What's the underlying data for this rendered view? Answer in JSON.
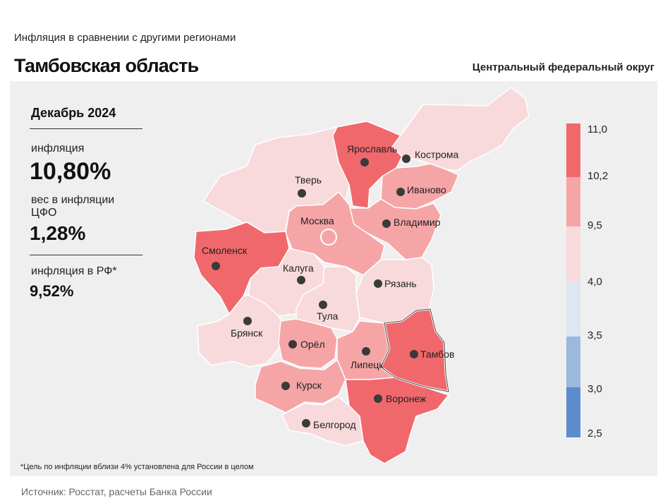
{
  "header": {
    "subtitle": "Инфляция  в сравнении  с другими  регионами",
    "title": "Тамбовская область",
    "district": "Центральный федеральный округ"
  },
  "stats": {
    "period": "Декабрь 2024",
    "inflation_label": "инфляция",
    "inflation_value": "10,80%",
    "weight_label": "вес в инфляции  ЦФО",
    "weight_value": "1,28%",
    "rf_label": "инфляция  в РФ*",
    "rf_value": "9,52%"
  },
  "legend": {
    "labels": [
      "11,0",
      "10,2",
      "9,5",
      "4,0",
      "3,5",
      "3,0",
      "2,5"
    ],
    "colors": [
      "#f0686b",
      "#f6a5a7",
      "#f8dadc",
      "#dfe6f3",
      "#9bb8de",
      "#5b8ccc"
    ]
  },
  "regions": [
    {
      "name": "Ярославль",
      "color": "#f0686b"
    },
    {
      "name": "Кострома",
      "color": "#f8dadc"
    },
    {
      "name": "Тверь",
      "color": "#f8dadc"
    },
    {
      "name": "Иваново",
      "color": "#f6a5a7"
    },
    {
      "name": "Москва",
      "color": "#f6a5a7"
    },
    {
      "name": "Владимир",
      "color": "#f6a5a7"
    },
    {
      "name": "Смоленск",
      "color": "#f0686b"
    },
    {
      "name": "Калуга",
      "color": "#f8dadc"
    },
    {
      "name": "Рязань",
      "color": "#f8dadc"
    },
    {
      "name": "Тула",
      "color": "#f8dadc"
    },
    {
      "name": "Брянск",
      "color": "#f8dadc"
    },
    {
      "name": "Орёл",
      "color": "#f6a5a7"
    },
    {
      "name": "Липецк",
      "color": "#f6a5a7"
    },
    {
      "name": "Тамбов",
      "color": "#f0686b"
    },
    {
      "name": "Курск",
      "color": "#f6a5a7"
    },
    {
      "name": "Воронеж",
      "color": "#f0686b"
    },
    {
      "name": "Белгород",
      "color": "#f8dadc"
    }
  ],
  "footnote": "*Цель по инфляции вблизи 4% установлена для России в целом",
  "source": "Источник: Росстат, расчеты Банка России"
}
